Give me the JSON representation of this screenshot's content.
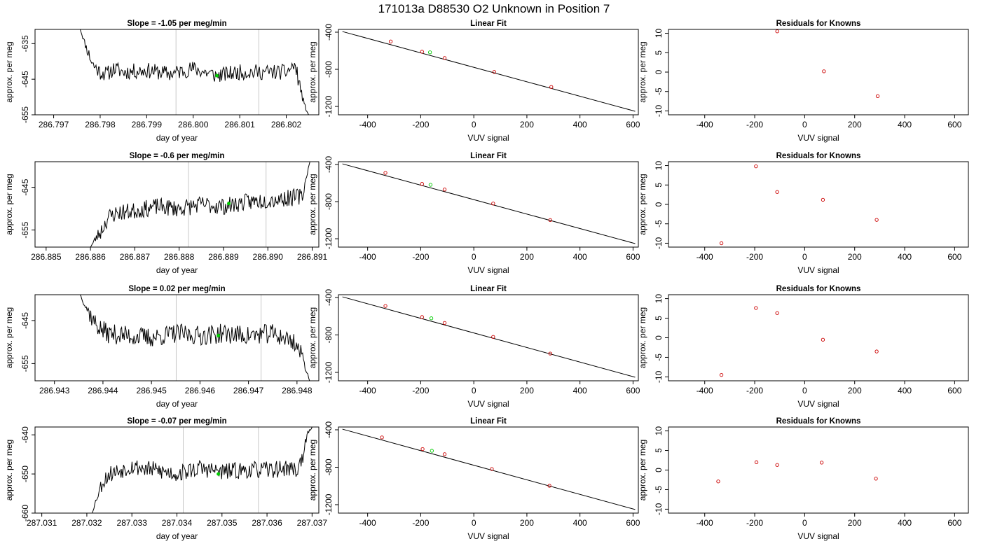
{
  "figure_title": "171013a     D88530   O2 Unknown in Position  7",
  "chart_data": [
    {
      "type": "line",
      "title": "Slope =  -1.05  per meg/min",
      "xlabel": "day of year",
      "ylabel": "approx. per meg",
      "xlim": [
        286.7966,
        286.8027
      ],
      "ylim": [
        -655,
        -631
      ],
      "xticks": [
        286.797,
        286.798,
        286.799,
        286.8,
        286.801,
        286.802
      ],
      "xtick_labels": [
        "286.797",
        "286.798",
        "286.799",
        "286.800",
        "286.801",
        "286.802"
      ],
      "yticks": [
        -635,
        -645,
        -655
      ],
      "ytick_labels": [
        "-635",
        "-645",
        "-655"
      ],
      "ref_lines_x": [
        286.79963,
        286.80141
      ],
      "series": [
        {
          "x": [
            286.79757,
            286.7977,
            286.79785,
            286.798,
            286.79815,
            286.7983,
            286.7985,
            286.799,
            286.7995,
            286.8,
            286.8005,
            286.801,
            286.8015,
            286.802,
            286.80218,
            286.80228,
            286.80238,
            286.80248
          ],
          "y": [
            -631,
            -636,
            -641,
            -643,
            -643.5,
            -642,
            -643,
            -642.5,
            -643.5,
            -642,
            -644,
            -643,
            -643,
            -643,
            -641,
            -646,
            -652,
            -655
          ]
        }
      ],
      "marker_point": {
        "x": 286.80051,
        "y": -644,
        "color": "#00cc00"
      },
      "noise": {
        "amplitude": 2.2,
        "seed": 11
      }
    },
    {
      "type": "line",
      "title": "Linear Fit",
      "xlabel": "VUV signal",
      "ylabel": "approx. per meg",
      "xlim": [
        -510,
        620
      ],
      "ylim": [
        -1290,
        -370
      ],
      "xticks": [
        -400,
        -200,
        0,
        200,
        400,
        600
      ],
      "xtick_labels": [
        "-400",
        "-200",
        "0",
        "200",
        "400",
        "600"
      ],
      "yticks": [
        -400,
        -800,
        -1200
      ],
      "ytick_labels": [
        "-400",
        "-800",
        "-1200"
      ],
      "fit_line": {
        "x": [
          -495,
          608
        ],
        "y": [
          -393,
          -1252
        ]
      },
      "points": [
        {
          "x": -313,
          "y": -500,
          "color": "#cc0000"
        },
        {
          "x": -195,
          "y": -610,
          "color": "#cc0000"
        },
        {
          "x": -165,
          "y": -617,
          "color": "#00cc00"
        },
        {
          "x": -110,
          "y": -678,
          "color": "#cc0000"
        },
        {
          "x": 77,
          "y": -828,
          "color": "#cc0000"
        },
        {
          "x": 292,
          "y": -990,
          "color": "#cc0000"
        }
      ]
    },
    {
      "type": "scatter",
      "title": "Residuals for Knowns",
      "xlabel": "VUV signal",
      "ylabel": "approx. per meg",
      "xlim": [
        -545,
        655
      ],
      "ylim": [
        -11,
        11
      ],
      "xticks": [
        -400,
        -200,
        0,
        200,
        400,
        600
      ],
      "xtick_labels": [
        "-400",
        "-200",
        "0",
        "200",
        "400",
        "600"
      ],
      "yticks": [
        10,
        5,
        0,
        -5,
        -10
      ],
      "ytick_labels": [
        "10",
        "5",
        "0",
        "-5",
        "-10"
      ],
      "points": [
        {
          "x": -110,
          "y": 10.5
        },
        {
          "x": 77,
          "y": 0.2
        },
        {
          "x": 292,
          "y": -6.2
        }
      ],
      "point_color": "#cc0000"
    },
    {
      "type": "line",
      "title": "Slope =  -0.6  per meg/min",
      "xlabel": "day of year",
      "ylabel": "approx. per meg",
      "xlim": [
        286.88475,
        286.89115
      ],
      "ylim": [
        -659,
        -639
      ],
      "xticks": [
        286.885,
        286.886,
        286.887,
        286.888,
        286.889,
        286.89,
        286.891
      ],
      "xtick_labels": [
        "286.885",
        "286.886",
        "286.887",
        "286.888",
        "286.889",
        "286.890",
        "286.891"
      ],
      "yticks": [
        -645,
        -655
      ],
      "ytick_labels": [
        "-645",
        "-655"
      ],
      "ref_lines_x": [
        286.88821,
        286.88996
      ],
      "series": [
        {
          "x": [
            286.886,
            286.88612,
            286.88625,
            286.8864,
            286.8866,
            286.887,
            286.8875,
            286.888,
            286.8885,
            286.889,
            286.8895,
            286.89,
            286.8905,
            286.8908,
            286.89082,
            286.89088,
            286.89095
          ],
          "y": [
            -659,
            -657,
            -655,
            -652,
            -651,
            -650.5,
            -649.5,
            -650,
            -649,
            -649.5,
            -648.5,
            -648,
            -647.5,
            -647,
            -645,
            -642,
            -639
          ]
        }
      ],
      "marker_point": {
        "x": 286.88912,
        "y": -648.8,
        "color": "#00cc00"
      },
      "noise": {
        "amplitude": 2.0,
        "seed": 23
      }
    },
    {
      "type": "line",
      "title": "Linear Fit",
      "xlabel": "VUV signal",
      "ylabel": "approx. per meg",
      "xlim": [
        -510,
        620
      ],
      "ylim": [
        -1290,
        -370
      ],
      "xticks": [
        -400,
        -200,
        0,
        200,
        400,
        600
      ],
      "xtick_labels": [
        "-400",
        "-200",
        "0",
        "200",
        "400",
        "600"
      ],
      "yticks": [
        -400,
        -800,
        -1200
      ],
      "ytick_labels": [
        "-400",
        "-800",
        "-1200"
      ],
      "fit_line": {
        "x": [
          -495,
          608
        ],
        "y": [
          -393,
          -1252
        ]
      },
      "points": [
        {
          "x": -333,
          "y": -491,
          "color": "#cc0000"
        },
        {
          "x": -195,
          "y": -609,
          "color": "#cc0000"
        },
        {
          "x": -163,
          "y": -619,
          "color": "#00cc00"
        },
        {
          "x": -110,
          "y": -670,
          "color": "#cc0000"
        },
        {
          "x": 73,
          "y": -821,
          "color": "#cc0000"
        },
        {
          "x": 288,
          "y": -999,
          "color": "#cc0000"
        }
      ]
    },
    {
      "type": "scatter",
      "title": "Residuals for Knowns",
      "xlabel": "VUV signal",
      "ylabel": "approx. per meg",
      "xlim": [
        -545,
        655
      ],
      "ylim": [
        -11,
        11
      ],
      "xticks": [
        -400,
        -200,
        0,
        200,
        400,
        600
      ],
      "xtick_labels": [
        "-400",
        "-200",
        "0",
        "200",
        "400",
        "600"
      ],
      "yticks": [
        10,
        5,
        0,
        -5,
        -10
      ],
      "ytick_labels": [
        "10",
        "5",
        "0",
        "-5",
        "-10"
      ],
      "points": [
        {
          "x": -333,
          "y": -10
        },
        {
          "x": -195,
          "y": 9.8
        },
        {
          "x": -110,
          "y": 3.2
        },
        {
          "x": 73,
          "y": 1.2
        },
        {
          "x": 288,
          "y": -4
        }
      ],
      "point_color": "#cc0000"
    },
    {
      "type": "line",
      "title": "Slope =  0.02  per meg/min",
      "xlabel": "day of year",
      "ylabel": "approx. per meg",
      "xlim": [
        286.9426,
        286.94845
      ],
      "ylim": [
        -659,
        -639
      ],
      "xticks": [
        286.943,
        286.944,
        286.945,
        286.946,
        286.947,
        286.948
      ],
      "xtick_labels": [
        "286.943",
        "286.944",
        "286.945",
        "286.946",
        "286.947",
        "286.948"
      ],
      "yticks": [
        -645,
        -655
      ],
      "ytick_labels": [
        "-645",
        "-655"
      ],
      "ref_lines_x": [
        286.94551,
        286.94726
      ],
      "series": [
        {
          "x": [
            286.94353,
            286.94366,
            286.9438,
            286.94395,
            286.9441,
            286.9445,
            286.945,
            286.9455,
            286.946,
            286.9465,
            286.947,
            286.9475,
            286.94795,
            286.9481,
            286.94818,
            286.94826
          ],
          "y": [
            -639,
            -642,
            -645,
            -647,
            -648,
            -648.5,
            -649,
            -648,
            -648.5,
            -648,
            -648.5,
            -648,
            -650,
            -653,
            -656,
            -659
          ]
        }
      ],
      "marker_point": {
        "x": 286.94638,
        "y": -648.5,
        "color": "#00cc00"
      },
      "noise": {
        "amplitude": 2.3,
        "seed": 37
      }
    },
    {
      "type": "line",
      "title": "Linear Fit",
      "xlabel": "VUV signal",
      "ylabel": "approx. per meg",
      "xlim": [
        -510,
        620
      ],
      "ylim": [
        -1290,
        -370
      ],
      "xticks": [
        -400,
        -200,
        0,
        200,
        400,
        600
      ],
      "xtick_labels": [
        "-400",
        "-200",
        "0",
        "200",
        "400",
        "600"
      ],
      "yticks": [
        -400,
        -800,
        -1200
      ],
      "ytick_labels": [
        "-400",
        "-800",
        "-1200"
      ],
      "fit_line": {
        "x": [
          -495,
          608
        ],
        "y": [
          -393,
          -1252
        ]
      },
      "points": [
        {
          "x": -333,
          "y": -491,
          "color": "#cc0000"
        },
        {
          "x": -195,
          "y": -609,
          "color": "#cc0000"
        },
        {
          "x": -160,
          "y": -622,
          "color": "#00cc00"
        },
        {
          "x": -110,
          "y": -672,
          "color": "#cc0000"
        },
        {
          "x": 73,
          "y": -821,
          "color": "#cc0000"
        },
        {
          "x": 288,
          "y": -999,
          "color": "#cc0000"
        }
      ]
    },
    {
      "type": "scatter",
      "title": "Residuals for Knowns",
      "xlabel": "VUV signal",
      "ylabel": "approx. per meg",
      "xlim": [
        -545,
        655
      ],
      "ylim": [
        -11,
        11
      ],
      "xticks": [
        -400,
        -200,
        0,
        200,
        400,
        600
      ],
      "xtick_labels": [
        "-400",
        "-200",
        "0",
        "200",
        "400",
        "600"
      ],
      "yticks": [
        10,
        5,
        0,
        -5,
        -10
      ],
      "ytick_labels": [
        "10",
        "5",
        "0",
        "-5",
        "-10"
      ],
      "points": [
        {
          "x": -333,
          "y": -9.5
        },
        {
          "x": -195,
          "y": 7.6
        },
        {
          "x": -110,
          "y": 6.3
        },
        {
          "x": 73,
          "y": -0.5
        },
        {
          "x": 288,
          "y": -3.5
        }
      ],
      "point_color": "#cc0000"
    },
    {
      "type": "line",
      "title": "Slope =  -0.07  per meg/min",
      "xlabel": "day of year",
      "ylabel": "approx. per meg",
      "xlim": [
        287.03085,
        287.03715
      ],
      "ylim": [
        -660,
        -638
      ],
      "xticks": [
        287.031,
        287.032,
        287.033,
        287.034,
        287.035,
        287.036,
        287.037
      ],
      "xtick_labels": [
        "287.031",
        "287.032",
        "287.033",
        "287.034",
        "287.035",
        "287.036",
        "287.037"
      ],
      "yticks": [
        -640,
        -650,
        -660
      ],
      "ytick_labels": [
        "-640",
        "-650",
        "-660"
      ],
      "ref_lines_x": [
        287.03414,
        287.03581
      ],
      "series": [
        {
          "x": [
            287.03212,
            287.03222,
            287.03235,
            287.0325,
            287.033,
            287.0335,
            287.034,
            287.0345,
            287.035,
            287.0355,
            287.036,
            287.0365,
            287.03668,
            287.0368,
            287.0369,
            287.037
          ],
          "y": [
            -660,
            -656,
            -652,
            -650,
            -648,
            -649,
            -650,
            -648.5,
            -649.5,
            -649,
            -649,
            -648.5,
            -649,
            -645,
            -640,
            -638
          ]
        }
      ],
      "marker_point": {
        "x": 287.03492,
        "y": -650,
        "color": "#00cc00"
      },
      "noise": {
        "amplitude": 2.2,
        "seed": 53
      }
    },
    {
      "type": "line",
      "title": "Linear Fit",
      "xlabel": "VUV signal",
      "ylabel": "approx. per meg",
      "xlim": [
        -510,
        620
      ],
      "ylim": [
        -1290,
        -370
      ],
      "xticks": [
        -400,
        -200,
        0,
        200,
        400,
        600
      ],
      "xtick_labels": [
        "-400",
        "-200",
        "0",
        "200",
        "400",
        "600"
      ],
      "yticks": [
        -400,
        -800,
        -1200
      ],
      "ytick_labels": [
        "-400",
        "-800",
        "-1200"
      ],
      "fit_line": {
        "x": [
          -495,
          608
        ],
        "y": [
          -393,
          -1252
        ]
      },
      "points": [
        {
          "x": -346,
          "y": -481,
          "color": "#cc0000"
        },
        {
          "x": -193,
          "y": -606,
          "color": "#cc0000"
        },
        {
          "x": -158,
          "y": -624,
          "color": "#00cc00"
        },
        {
          "x": -110,
          "y": -661,
          "color": "#cc0000"
        },
        {
          "x": 68,
          "y": -819,
          "color": "#cc0000"
        },
        {
          "x": 285,
          "y": -998,
          "color": "#cc0000"
        }
      ]
    },
    {
      "type": "scatter",
      "title": "Residuals for Knowns",
      "xlabel": "VUV signal",
      "ylabel": "approx. per meg",
      "xlim": [
        -545,
        655
      ],
      "ylim": [
        -11,
        11
      ],
      "xticks": [
        -400,
        -200,
        0,
        200,
        400,
        600
      ],
      "xtick_labels": [
        "-400",
        "-200",
        "0",
        "200",
        "400",
        "600"
      ],
      "yticks": [
        10,
        5,
        0,
        -5,
        -10
      ],
      "ytick_labels": [
        "10",
        "5",
        "0",
        "-5",
        "-10"
      ],
      "points": [
        {
          "x": -346,
          "y": -2.9
        },
        {
          "x": -193,
          "y": 2.0
        },
        {
          "x": -110,
          "y": 1.3
        },
        {
          "x": 68,
          "y": 1.9
        },
        {
          "x": 285,
          "y": -2.2
        }
      ],
      "point_color": "#cc0000"
    }
  ]
}
